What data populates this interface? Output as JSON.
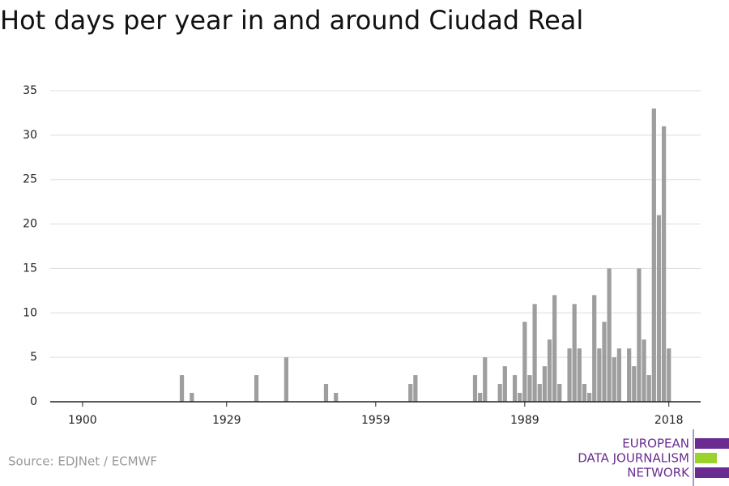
{
  "chart_data": {
    "type": "bar",
    "title": "Hot days per year in and around Ciudad Real",
    "source": "Source: EDJNet / ECMWF",
    "logo": [
      "EUROPEAN",
      "DATA JOURNALISM",
      "NETWORK"
    ],
    "x": [
      1920,
      1922,
      1935,
      1941,
      1949,
      1951,
      1966,
      1967,
      1979,
      1980,
      1981,
      1984,
      1985,
      1987,
      1988,
      1989,
      1990,
      1991,
      1992,
      1993,
      1994,
      1995,
      1996,
      1998,
      1999,
      2000,
      2001,
      2002,
      2003,
      2004,
      2005,
      2006,
      2007,
      2008,
      2010,
      2011,
      2012,
      2013,
      2014,
      2015,
      2016,
      2017,
      2018
    ],
    "values": [
      3,
      1,
      3,
      5,
      2,
      1,
      2,
      3,
      3,
      1,
      5,
      2,
      4,
      3,
      1,
      9,
      3,
      11,
      2,
      4,
      7,
      12,
      2,
      6,
      11,
      6,
      2,
      1,
      12,
      6,
      9,
      15,
      5,
      6,
      6,
      4,
      15,
      7,
      3,
      33,
      21,
      31,
      6
    ],
    "color": "#9e9e9e",
    "xlim": [
      1893.5,
      2024.4
    ],
    "xticks": [
      1900,
      1929,
      1959,
      1989,
      2018
    ],
    "ylim": [
      0,
      35
    ],
    "yticks": [
      0,
      5,
      10,
      15,
      20,
      25,
      30,
      35
    ],
    "grid": true
  }
}
